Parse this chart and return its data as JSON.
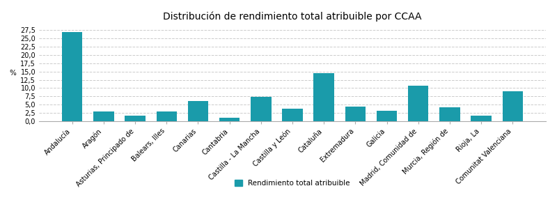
{
  "title": "Distribución de rendimiento total atribuible por CCAA",
  "categories": [
    "Andalucía",
    "Aragón",
    "Asturias, Principado de",
    "Balears, Illes",
    "Canarias",
    "Cantabria",
    "Castilla - La Mancha",
    "Castilla y León",
    "Cataluña",
    "Extremadura",
    "Galicia",
    "Madrid, Comunidad de",
    "Murcia, Región de",
    "Rioja, La",
    "Comunitat Valenciana"
  ],
  "values": [
    27.0,
    2.9,
    1.6,
    2.9,
    6.1,
    1.1,
    7.4,
    3.8,
    14.5,
    4.4,
    3.2,
    10.8,
    4.1,
    1.6,
    9.1
  ],
  "bar_color": "#1a9baa",
  "ylabel": "%",
  "ylim": [
    0,
    29
  ],
  "yticks": [
    0.0,
    2.5,
    5.0,
    7.5,
    10.0,
    12.5,
    15.0,
    17.5,
    20.0,
    22.5,
    25.0,
    27.5
  ],
  "ytick_labels": [
    "0,0",
    "2,5",
    "5,0",
    "7,5",
    "10,0",
    "12,5",
    "15,0",
    "17,5",
    "20,0",
    "22,5",
    "25,0",
    "27,5"
  ],
  "legend_label": "Rendimiento total atribuible",
  "background_color": "#ffffff",
  "grid_color": "#cccccc",
  "title_fontsize": 10,
  "axis_label_fontsize": 7.5,
  "tick_label_fontsize": 7,
  "legend_fontsize": 7.5
}
